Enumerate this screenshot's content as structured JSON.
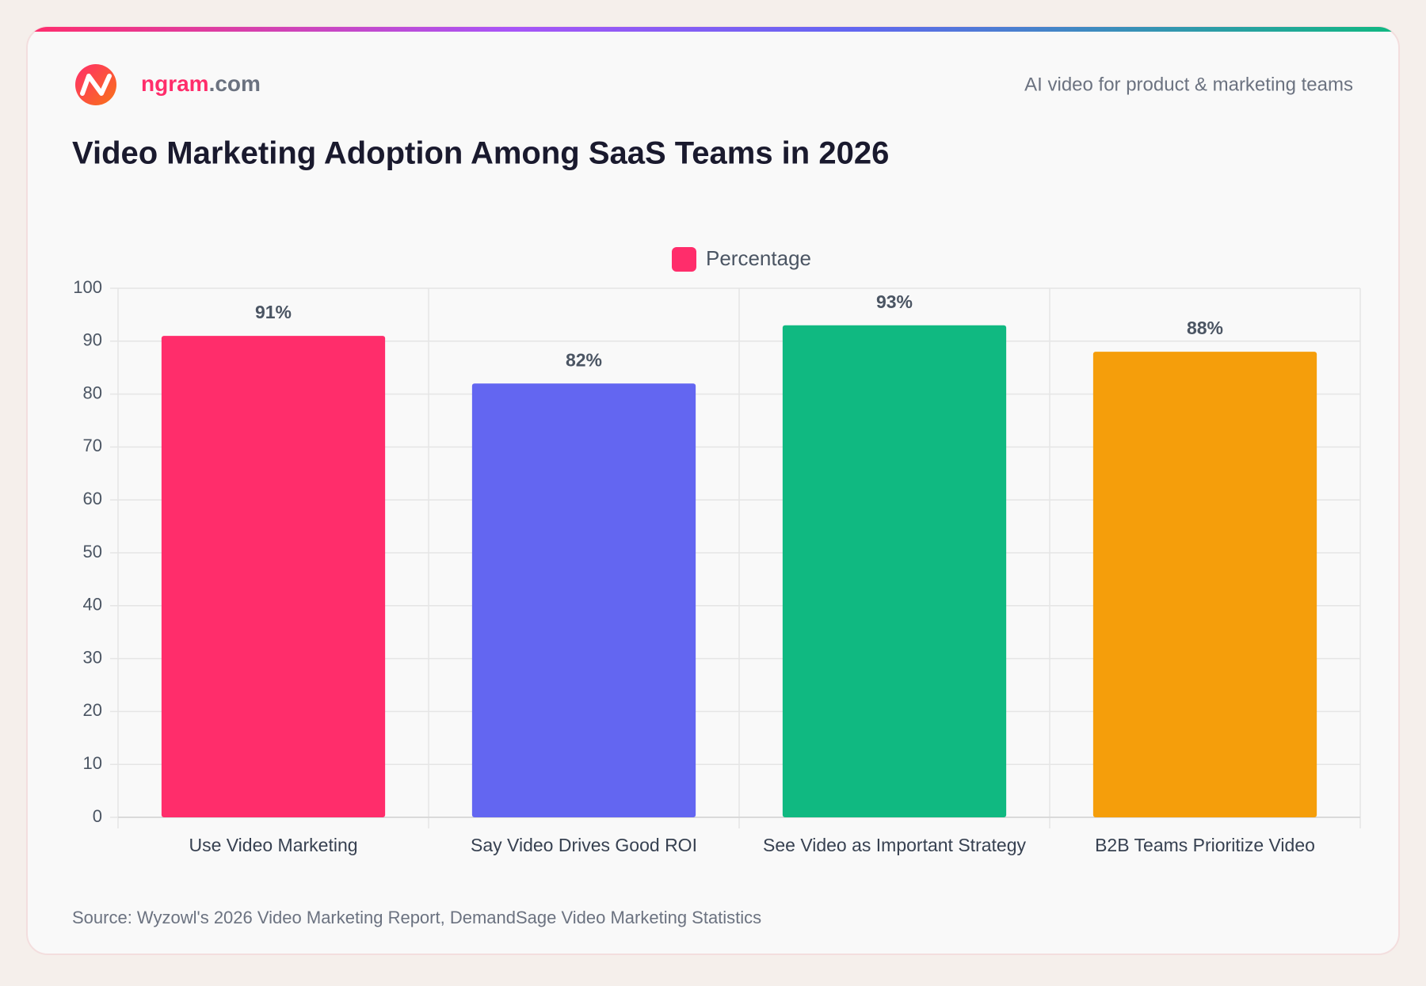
{
  "header": {
    "brand": "ngram",
    "brand_suffix": ".com",
    "tagline": "AI video for product & marketing teams"
  },
  "chart_data": {
    "type": "bar",
    "title": "Video Marketing Adoption Among SaaS Teams in 2026",
    "categories": [
      "Use Video Marketing",
      "Say Video Drives Good ROI",
      "See Video as Important Strategy",
      "B2B Teams Prioritize Video"
    ],
    "series": [
      {
        "name": "Percentage",
        "color": "#ff2d6b",
        "colors": [
          "#ff2d6b",
          "#6366f1",
          "#10b981",
          "#f59e0b"
        ],
        "values": [
          91,
          82,
          93,
          88
        ],
        "value_labels": [
          "91%",
          "82%",
          "93%",
          "88%"
        ]
      }
    ],
    "ylim": [
      0,
      100
    ],
    "yticks": [
      0,
      10,
      20,
      30,
      40,
      50,
      60,
      70,
      80,
      90,
      100
    ],
    "grid": true,
    "legend": "top"
  },
  "source": "Source: Wyzowl's 2026 Video Marketing Report, DemandSage Video Marketing Statistics"
}
